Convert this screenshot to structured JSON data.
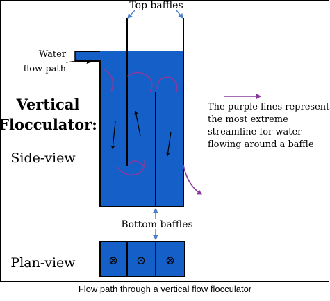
{
  "labels": {
    "top_baffles": "Top baffles",
    "water_flow_path_line1": "Water",
    "water_flow_path_line2": "flow path",
    "title_line1": "Vertical",
    "title_line2": "Flocculator:",
    "side_view": "Side-view",
    "plan_view": "Plan-view",
    "bottom_baffles": "Bottom baffles",
    "note_line1": "The purple lines represent",
    "note_line2": "the most extreme",
    "note_line3": "streamline for water",
    "note_line4": "flowing around a baffle"
  },
  "caption": "Flow path through a vertical flow flocculator",
  "plan_symbols": [
    "⊗",
    "⊙",
    "⊗"
  ],
  "colors": {
    "water": "#1560c8",
    "streamline": "#8a3a9a",
    "annotation_arrow": "#4a80c8",
    "outline": "#000000"
  }
}
